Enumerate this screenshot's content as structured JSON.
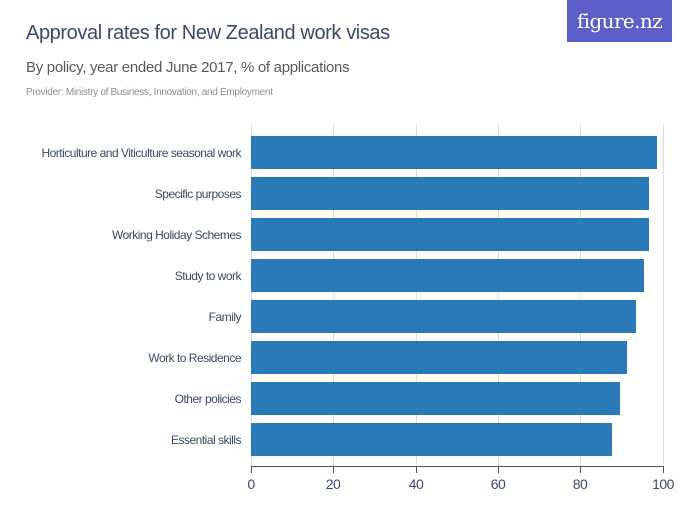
{
  "header": {
    "title": "Approval rates for New Zealand work visas",
    "subtitle": "By policy, year ended June 2017, % of applications",
    "provider": "Provider: Ministry of Business, Innovation, and Employment",
    "logo_text": "figure.nz"
  },
  "colors": {
    "bar": "#2a7ab8",
    "logo_bg": "#5b5fc7",
    "title": "#3b4a68"
  },
  "axis": {
    "ticks": [
      "0",
      "20",
      "40",
      "60",
      "80",
      "100"
    ]
  },
  "chart_data": {
    "type": "bar",
    "orientation": "horizontal",
    "title": "Approval rates for New Zealand work visas",
    "subtitle": "By policy, year ended June 2017, % of applications",
    "xlabel": "",
    "ylabel": "",
    "xlim": [
      0,
      100
    ],
    "x_ticks": [
      0,
      20,
      40,
      60,
      80,
      100
    ],
    "grid": true,
    "legend": null,
    "categories": [
      "Horticulture and Viticulture seasonal work",
      "Specific purposes",
      "Working Holiday Schemes",
      "Study to work",
      "Family",
      "Work to Residence",
      "Other policies",
      "Essential skills"
    ],
    "values": [
      98.6,
      96.8,
      96.7,
      95.5,
      93.5,
      91.4,
      89.6,
      87.8
    ]
  }
}
